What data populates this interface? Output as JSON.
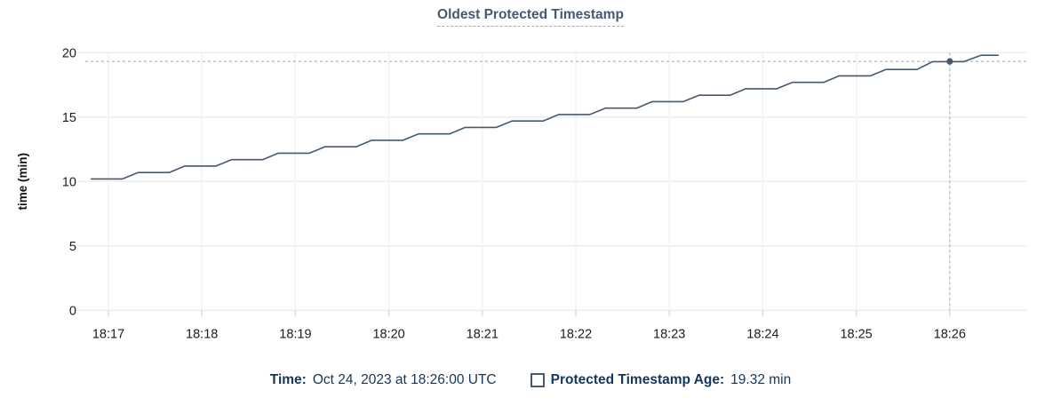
{
  "title": "Oldest Protected Timestamp",
  "y_axis_label": "time (min)",
  "legend": {
    "time_label": "Time:",
    "time_value": "Oct 24, 2023 at 18:26:00 UTC",
    "series_label": "Protected Timestamp Age:",
    "series_value": "19.32 min"
  },
  "colors": {
    "line": "#475872",
    "marker": "#475872",
    "crosshair": "#a4bccd",
    "grid_horizontal": "#ececec",
    "grid_vertical": "#f3f3f3",
    "tick": "#dcdcdc",
    "axis_text": "#1c1c1c",
    "title_text": "#475872",
    "legend_text": "#15365c"
  },
  "chart_data": {
    "type": "line",
    "title": "Oldest Protected Timestamp",
    "xlabel": "",
    "ylabel": "time (min)",
    "ylim": [
      0,
      20
    ],
    "yticks": [
      0,
      5,
      10,
      15,
      20
    ],
    "xticks": [
      "18:17",
      "18:18",
      "18:19",
      "18:20",
      "18:21",
      "18:22",
      "18:23",
      "18:24",
      "18:25",
      "18:26"
    ],
    "x_window": [
      "18:16:45",
      "18:26:49"
    ],
    "grid": true,
    "legend_position": "bottom",
    "series": [
      {
        "name": "Protected Timestamp Age",
        "unit": "min",
        "points": [
          [
            "18:16:49",
            10.2
          ],
          [
            "18:17:09",
            10.2
          ],
          [
            "18:17:19",
            10.7
          ],
          [
            "18:17:39",
            10.7
          ],
          [
            "18:17:49",
            11.2
          ],
          [
            "18:18:09",
            11.2
          ],
          [
            "18:18:19",
            11.7
          ],
          [
            "18:18:39",
            11.7
          ],
          [
            "18:18:49",
            12.2
          ],
          [
            "18:19:09",
            12.2
          ],
          [
            "18:19:19",
            12.7
          ],
          [
            "18:19:39",
            12.7
          ],
          [
            "18:19:49",
            13.2
          ],
          [
            "18:20:09",
            13.2
          ],
          [
            "18:20:19",
            13.7
          ],
          [
            "18:20:39",
            13.7
          ],
          [
            "18:20:49",
            14.2
          ],
          [
            "18:21:09",
            14.2
          ],
          [
            "18:21:19",
            14.7
          ],
          [
            "18:21:39",
            14.7
          ],
          [
            "18:21:49",
            15.2
          ],
          [
            "18:22:09",
            15.2
          ],
          [
            "18:22:19",
            15.7
          ],
          [
            "18:22:39",
            15.7
          ],
          [
            "18:22:49",
            16.2
          ],
          [
            "18:23:09",
            16.2
          ],
          [
            "18:23:19",
            16.7
          ],
          [
            "18:23:39",
            16.7
          ],
          [
            "18:23:49",
            17.2
          ],
          [
            "18:24:09",
            17.2
          ],
          [
            "18:24:19",
            17.7
          ],
          [
            "18:24:39",
            17.7
          ],
          [
            "18:24:49",
            18.2
          ],
          [
            "18:25:09",
            18.2
          ],
          [
            "18:25:19",
            18.7
          ],
          [
            "18:25:39",
            18.7
          ],
          [
            "18:25:49",
            19.3
          ],
          [
            "18:26:09",
            19.3
          ],
          [
            "18:26:20",
            19.8
          ],
          [
            "18:26:31",
            19.8
          ]
        ]
      }
    ],
    "hover": {
      "date": "Oct 24, 2023",
      "time": "18:26:00",
      "value": 19.32,
      "crosshair": true,
      "marker": true
    }
  }
}
